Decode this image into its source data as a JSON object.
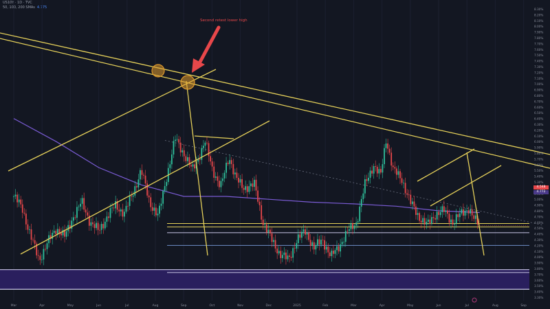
{
  "header": {
    "line1": "US10Y · 1D · TVC",
    "line2": "50, 100, 200 SMAs",
    "ma_value": "4.775"
  },
  "annotation": {
    "text": "Second retest lower high",
    "color": "#e8474a"
  },
  "colors": {
    "background": "#131722",
    "candle_up": "#2fbf9b",
    "candle_down": "#e8474a",
    "trendline": "#e6d15a",
    "sma": "#7b5cd6",
    "support_zone": "#2a1f5e",
    "support_line": "#c9c6e6",
    "pivot_circle": "#e09a2c"
  },
  "price_tags": {
    "current": "4.548",
    "sma": "4.772"
  },
  "chart_data": {
    "type": "candlestick",
    "title": "",
    "x_tick_labels": [
      "Mar",
      "Apr",
      "May",
      "Jun",
      "Jul",
      "Aug",
      "Sep",
      "Oct",
      "Nov",
      "Dec",
      "2025",
      "Feb",
      "Mar",
      "Apr",
      "May",
      "Jun",
      "Jul",
      "Aug",
      "Sep"
    ],
    "y_tick_labels": [
      "3.30%",
      "3.40%",
      "3.50%",
      "3.60%",
      "3.70%",
      "3.80%",
      "3.90%",
      "4.00%",
      "4.10%",
      "4.20%",
      "4.30%",
      "4.40%",
      "4.50%",
      "4.60%",
      "4.70%",
      "4.80%",
      "4.90%",
      "5.00%",
      "5.10%",
      "5.20%",
      "5.30%",
      "5.40%",
      "5.50%",
      "5.60%",
      "5.70%",
      "5.80%",
      "5.90%",
      "6.00%",
      "6.10%",
      "6.20%",
      "6.30%",
      "6.40%",
      "6.50%",
      "6.60%",
      "6.70%",
      "6.80%",
      "6.90%",
      "7.00%",
      "7.10%",
      "7.20%",
      "7.30%",
      "7.40%",
      "7.50%",
      "7.60%",
      "7.70%",
      "7.80%",
      "7.90%",
      "8.00%",
      "8.10%",
      "8.20%",
      "8.30%"
    ],
    "ylim": [
      3.25,
      8.35
    ],
    "x_range_months": [
      0,
      18.4
    ],
    "price_path": [
      [
        0.0,
        5.05
      ],
      [
        0.3,
        4.85
      ],
      [
        0.6,
        4.35
      ],
      [
        0.9,
        3.95
      ],
      [
        1.2,
        4.25
      ],
      [
        1.5,
        4.5
      ],
      [
        1.8,
        4.35
      ],
      [
        2.1,
        4.7
      ],
      [
        2.4,
        4.95
      ],
      [
        2.7,
        4.6
      ],
      [
        3.0,
        4.45
      ],
      [
        3.3,
        4.7
      ],
      [
        3.6,
        4.9
      ],
      [
        3.9,
        4.75
      ],
      [
        4.2,
        5.1
      ],
      [
        4.5,
        5.5
      ],
      [
        4.8,
        4.95
      ],
      [
        5.1,
        4.7
      ],
      [
        5.4,
        5.4
      ],
      [
        5.7,
        6.05
      ],
      [
        6.0,
        5.8
      ],
      [
        6.3,
        5.5
      ],
      [
        6.55,
        5.75
      ],
      [
        6.75,
        6.0
      ],
      [
        7.0,
        5.55
      ],
      [
        7.3,
        5.2
      ],
      [
        7.6,
        5.75
      ],
      [
        7.85,
        5.35
      ],
      [
        8.1,
        5.2
      ],
      [
        8.5,
        5.25
      ],
      [
        8.8,
        4.6
      ],
      [
        9.1,
        4.3
      ],
      [
        9.4,
        4.05
      ],
      [
        9.7,
        3.95
      ],
      [
        10.0,
        4.3
      ],
      [
        10.3,
        4.45
      ],
      [
        10.6,
        4.15
      ],
      [
        10.9,
        4.3
      ],
      [
        11.2,
        4.0
      ],
      [
        11.5,
        4.2
      ],
      [
        11.8,
        4.45
      ],
      [
        12.1,
        4.6
      ],
      [
        12.4,
        5.25
      ],
      [
        12.7,
        5.6
      ],
      [
        12.95,
        5.4
      ],
      [
        13.15,
        6.05
      ],
      [
        13.4,
        5.5
      ],
      [
        13.7,
        5.35
      ],
      [
        14.0,
        4.95
      ],
      [
        14.3,
        4.7
      ],
      [
        14.6,
        4.55
      ],
      [
        14.9,
        4.75
      ],
      [
        15.2,
        4.8
      ],
      [
        15.5,
        4.6
      ],
      [
        15.8,
        4.75
      ],
      [
        16.05,
        4.85
      ],
      [
        16.25,
        4.65
      ],
      [
        16.45,
        4.55
      ]
    ],
    "sma_path": [
      [
        0.0,
        6.4
      ],
      [
        1.5,
        6.0
      ],
      [
        3.0,
        5.55
      ],
      [
        4.5,
        5.25
      ],
      [
        6.0,
        5.05
      ],
      [
        7.5,
        5.05
      ],
      [
        9.0,
        5.0
      ],
      [
        10.5,
        4.95
      ],
      [
        12.0,
        4.92
      ],
      [
        13.5,
        4.88
      ],
      [
        15.0,
        4.8
      ],
      [
        16.45,
        4.77
      ]
    ],
    "horizontal_levels": [
      4.58,
      4.52,
      4.42,
      4.2
    ],
    "support_zone": [
      3.44,
      3.78
    ],
    "support_zone_upper_line": 3.78,
    "support_zone_lower_line": 3.44,
    "extra_level": 3.73,
    "current_price": 4.548
  }
}
